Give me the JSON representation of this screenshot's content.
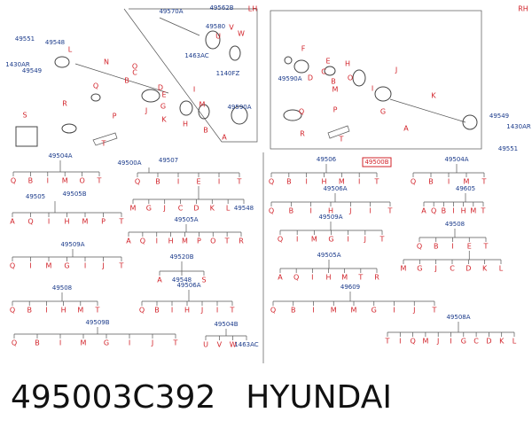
{
  "header": {
    "lh": "LH",
    "rh": "RH"
  },
  "footer": {
    "part_number": "495003C392",
    "brand": "HYUNDAI"
  },
  "lh_callouts": [
    "49570A",
    "49562B",
    "49580",
    "U",
    "V",
    "W",
    "1463AC",
    "1140FZ",
    "49551",
    "1430AR",
    "49549",
    "49548",
    "L",
    "N",
    "O",
    "C",
    "B",
    "Q",
    "P",
    "G",
    "E",
    "D",
    "J",
    "I",
    "M",
    "H",
    "K",
    "R",
    "T",
    "S",
    "A",
    "B",
    "49590A"
  ],
  "rh_callouts": [
    "F",
    "49590A",
    "D",
    "C",
    "E",
    "H",
    "B",
    "M",
    "O",
    "I",
    "J",
    "G",
    "K",
    "A",
    "Q",
    "P",
    "R",
    "T",
    "49549",
    "1430AR",
    "49551"
  ],
  "rh_assembly": "49500B",
  "lh_trees": [
    {
      "labels": [
        "49504A"
      ],
      "leaves": [
        "Q",
        "B",
        "I",
        "M",
        "O",
        "T"
      ]
    },
    {
      "labels": [
        "49505",
        "49505B"
      ],
      "leaves": [
        "A",
        "Q",
        "I",
        "H",
        "M",
        "P",
        "T"
      ]
    },
    {
      "labels": [
        "49509A"
      ],
      "leaves": [
        "Q",
        "I",
        "M",
        "G",
        "I",
        "J",
        "T"
      ]
    },
    {
      "labels": [
        "49508"
      ],
      "leaves": [
        "Q",
        "B",
        "I",
        "H",
        "M",
        "T"
      ]
    },
    {
      "labels": [
        "49509B"
      ],
      "leaves": [
        "Q",
        "B",
        "I",
        "M",
        "G",
        "I",
        "J",
        "T"
      ]
    },
    {
      "labels": [
        "49500A",
        "49507"
      ],
      "leaves": [
        "Q",
        "B",
        "I",
        "E",
        "I",
        "T"
      ],
      "sub": {
        "parent": 3,
        "leaves": [
          "M",
          "G",
          "J",
          "C",
          "D",
          "K",
          "L",
          "49548"
        ]
      }
    },
    {
      "labels": [
        "49505A"
      ],
      "leaves": [
        "A",
        "Q",
        "I",
        "H",
        "M",
        "P",
        "O",
        "T",
        "R"
      ]
    },
    {
      "labels": [
        "49520B"
      ],
      "leaves": [
        "A",
        "49548",
        "S"
      ]
    },
    {
      "labels": [
        "49506A"
      ],
      "leaves": [
        "Q",
        "B",
        "I",
        "H",
        "J",
        "I",
        "T"
      ]
    },
    {
      "labels": [
        "49504B"
      ],
      "leaves": [
        "U",
        "V",
        "W",
        "1463AC"
      ]
    }
  ],
  "rh_trees": [
    {
      "labels": [
        "49506"
      ],
      "leaves": [
        "Q",
        "B",
        "I",
        "H",
        "M",
        "I",
        "T"
      ]
    },
    {
      "labels": [
        "49504A"
      ],
      "leaves": [
        "Q",
        "B",
        "I",
        "M",
        "T"
      ]
    },
    {
      "labels": [
        "49506A"
      ],
      "leaves": [
        "Q",
        "B",
        "I",
        "H",
        "J",
        "I",
        "T"
      ]
    },
    {
      "labels": [
        "49605"
      ],
      "leaves": [
        "A",
        "Q",
        "B",
        "I",
        "H",
        "M",
        "T"
      ]
    },
    {
      "labels": [
        "49509A"
      ],
      "leaves": [
        "Q",
        "I",
        "M",
        "G",
        "I",
        "J",
        "T"
      ]
    },
    {
      "labels": [
        "49508"
      ],
      "leaves": [
        "Q",
        "B",
        "I",
        "E",
        "T"
      ],
      "sub": {
        "parent": 3,
        "leaves": [
          "M",
          "G",
          "J",
          "C",
          "D",
          "K",
          "L"
        ]
      }
    },
    {
      "labels": [
        "49505A"
      ],
      "leaves": [
        "A",
        "Q",
        "I",
        "H",
        "M",
        "T",
        "R"
      ]
    },
    {
      "labels": [
        "49609"
      ],
      "leaves": [
        "Q",
        "B",
        "I",
        "M",
        "M",
        "G",
        "I",
        "J",
        "T"
      ]
    },
    {
      "labels": [
        "49508A"
      ],
      "leaves": [
        "T",
        "I",
        "Q",
        "M",
        "J",
        "I",
        "G",
        "C",
        "D",
        "K",
        "L"
      ]
    }
  ]
}
